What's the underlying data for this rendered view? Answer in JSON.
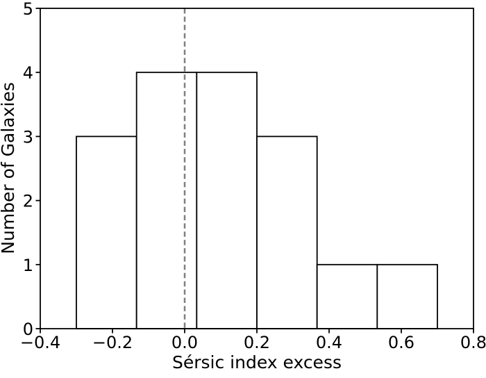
{
  "figure": {
    "background": "#ffffff"
  },
  "chart_data": {
    "type": "bar",
    "subtype": "histogram",
    "title": "",
    "xlabel": "Sérsic index excess",
    "ylabel": "Number of Galaxies",
    "bin_edges": [
      -0.3,
      -0.1333,
      0.0333,
      0.2,
      0.3667,
      0.5333,
      0.7
    ],
    "counts": [
      3,
      4,
      4,
      3,
      1,
      1
    ],
    "total_galaxies": 16,
    "xlim": [
      -0.4,
      0.8
    ],
    "ylim": [
      0,
      5
    ],
    "xticks": [
      -0.4,
      -0.2,
      0.0,
      0.2,
      0.4,
      0.6,
      0.8
    ],
    "xtick_labels": [
      "−0.4",
      "−0.2",
      "0.0",
      "0.2",
      "0.4",
      "0.6",
      "0.8"
    ],
    "yticks": [
      0,
      1,
      2,
      3,
      4,
      5
    ],
    "ytick_labels": [
      "0",
      "1",
      "2",
      "3",
      "4",
      "5"
    ],
    "vline": {
      "x": 0.0,
      "color": "#7f7f7f",
      "style": "dashed"
    },
    "bar_fill": "#ffffff",
    "bar_edge_color": "#000000",
    "axis_color": "#000000",
    "grid": false,
    "legend": null
  }
}
